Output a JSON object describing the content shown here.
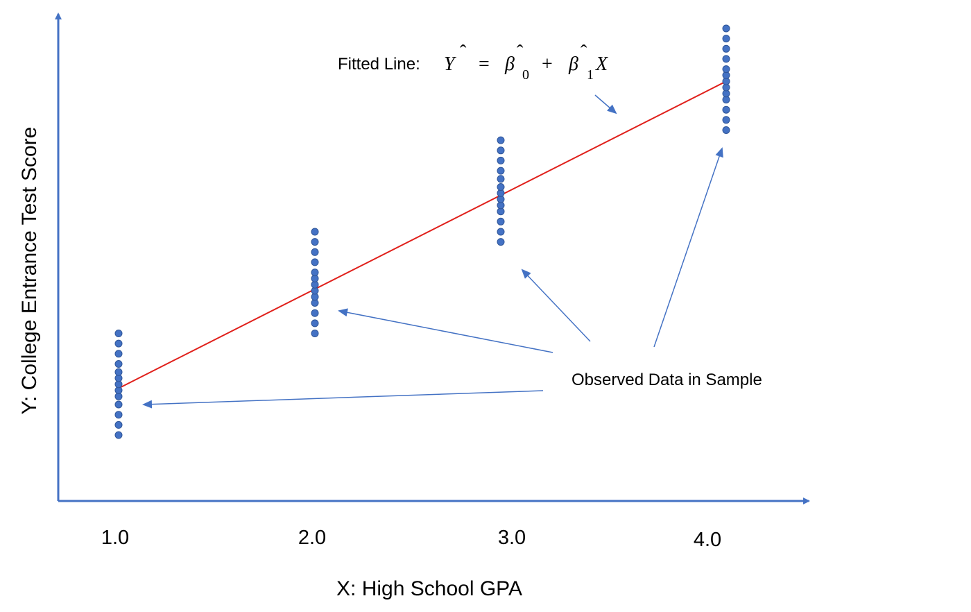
{
  "chart_data": {
    "type": "scatter",
    "title": "",
    "xlabel": "X: High School GPA",
    "ylabel": "Y: College Entrance Test Score",
    "x_ticks": [
      "1.0",
      "2.0",
      "3.0",
      "4.0"
    ],
    "grid": false,
    "legend": "none",
    "axis_color": "#4472C4",
    "point_color": "#4472C4",
    "line_color": "#E0201B",
    "series": [
      {
        "type": "scatter",
        "points": [
          {
            "x": 1,
            "y": [
              1.0,
              1.5,
              2.0,
              2.5,
              2.9,
              3.2,
              3.5,
              3.8,
              4.1,
              4.5,
              5.0,
              5.5,
              6.0
            ]
          },
          {
            "x": 2,
            "y": [
              6.0,
              6.5,
              7.0,
              7.5,
              7.8,
              8.1,
              8.4,
              8.7,
              9.0,
              9.5,
              10.0,
              10.5,
              11.0
            ]
          },
          {
            "x": 3,
            "y": [
              10.5,
              11.0,
              11.5,
              12.0,
              12.3,
              12.6,
              12.9,
              13.2,
              13.6,
              14.0,
              14.5,
              15.0,
              15.5
            ]
          },
          {
            "x": 4,
            "y": [
              16.0,
              16.5,
              17.0,
              17.5,
              17.8,
              18.1,
              18.4,
              18.7,
              19.0,
              19.5,
              20.0,
              20.5,
              21.0
            ]
          }
        ]
      },
      {
        "type": "line",
        "x": [
          1,
          4
        ],
        "y": [
          3.3,
          18.4
        ]
      }
    ],
    "annotations": {
      "fitted_line_prefix": "Fitted Line:",
      "fitted_line_formula": {
        "Y": "Y",
        "eq": "=",
        "beta": "β",
        "sub0": "0",
        "plus": "+",
        "sub1": "1",
        "X": "X",
        "hat": "ˆ"
      },
      "observed": "Observed Data in Sample"
    }
  }
}
